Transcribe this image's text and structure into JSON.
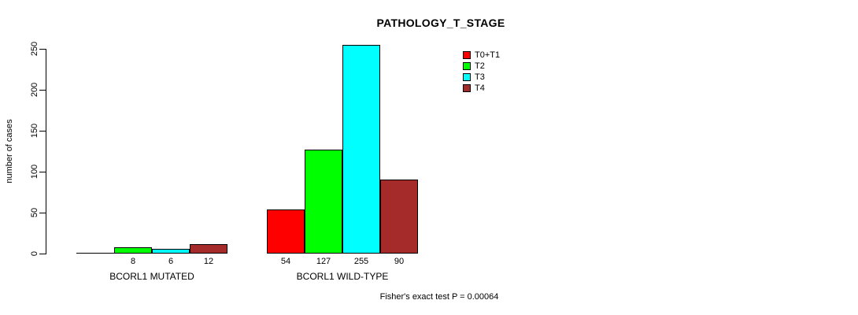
{
  "chart_data": {
    "type": "bar",
    "title": "PATHOLOGY_T_STAGE",
    "ylabel": "number of cases",
    "xlabel": "",
    "categories": [
      "BCORL1 MUTATED",
      "BCORL1 WILD-TYPE"
    ],
    "series": [
      {
        "name": "T0+T1",
        "color": "#ff0000",
        "values": [
          0,
          54
        ],
        "bar_labels": [
          "",
          "54"
        ]
      },
      {
        "name": "T2",
        "color": "#00ff00",
        "values": [
          8,
          127
        ],
        "bar_labels": [
          "8",
          "127"
        ]
      },
      {
        "name": "T3",
        "color": "#00ffff",
        "values": [
          6,
          255
        ],
        "bar_labels": [
          "6",
          "255"
        ]
      },
      {
        "name": "T4",
        "color": "#a52a2a",
        "values": [
          12,
          90
        ],
        "bar_labels": [
          "12",
          "90"
        ]
      }
    ],
    "yticks": [
      0,
      50,
      100,
      150,
      200,
      250
    ],
    "ylim": [
      0,
      260
    ],
    "grid": false,
    "legend_position": "top-right",
    "annotation": "Fisher's exact test P = 0.00064"
  },
  "style_colors": {
    "axis": "#000000",
    "text": "#000000",
    "background": "#ffffff"
  }
}
